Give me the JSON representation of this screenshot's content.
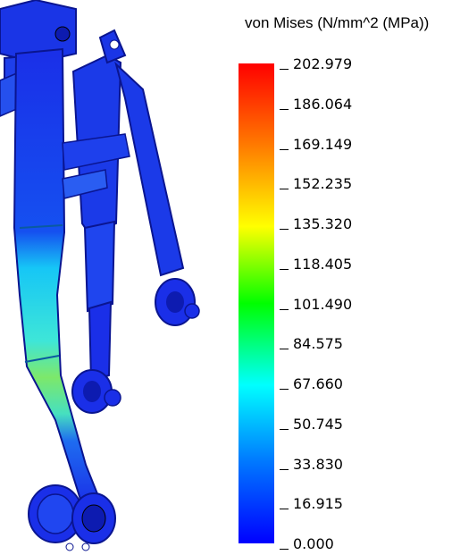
{
  "legend": {
    "title": "von Mises (N/mm^2 (MPa))",
    "ticks": [
      "202.979",
      "186.064",
      "169.149",
      "152.235",
      "135.320",
      "118.405",
      "101.490",
      "84.575",
      "67.660",
      "50.745",
      "33.830",
      "16.915",
      "0.000"
    ],
    "colors": [
      "#ff0000",
      "#ff7a00",
      "#ffff00",
      "#00ff00",
      "#00ffff",
      "#0078ff",
      "#0000ff"
    ]
  },
  "model": {
    "colors": {
      "frame": "#1a2fe8",
      "frame_dark": "#0d1bb0",
      "low_stress": "#12c8ff",
      "mid_stress": "#32e6a0",
      "high_stress": "#8be84a"
    }
  }
}
